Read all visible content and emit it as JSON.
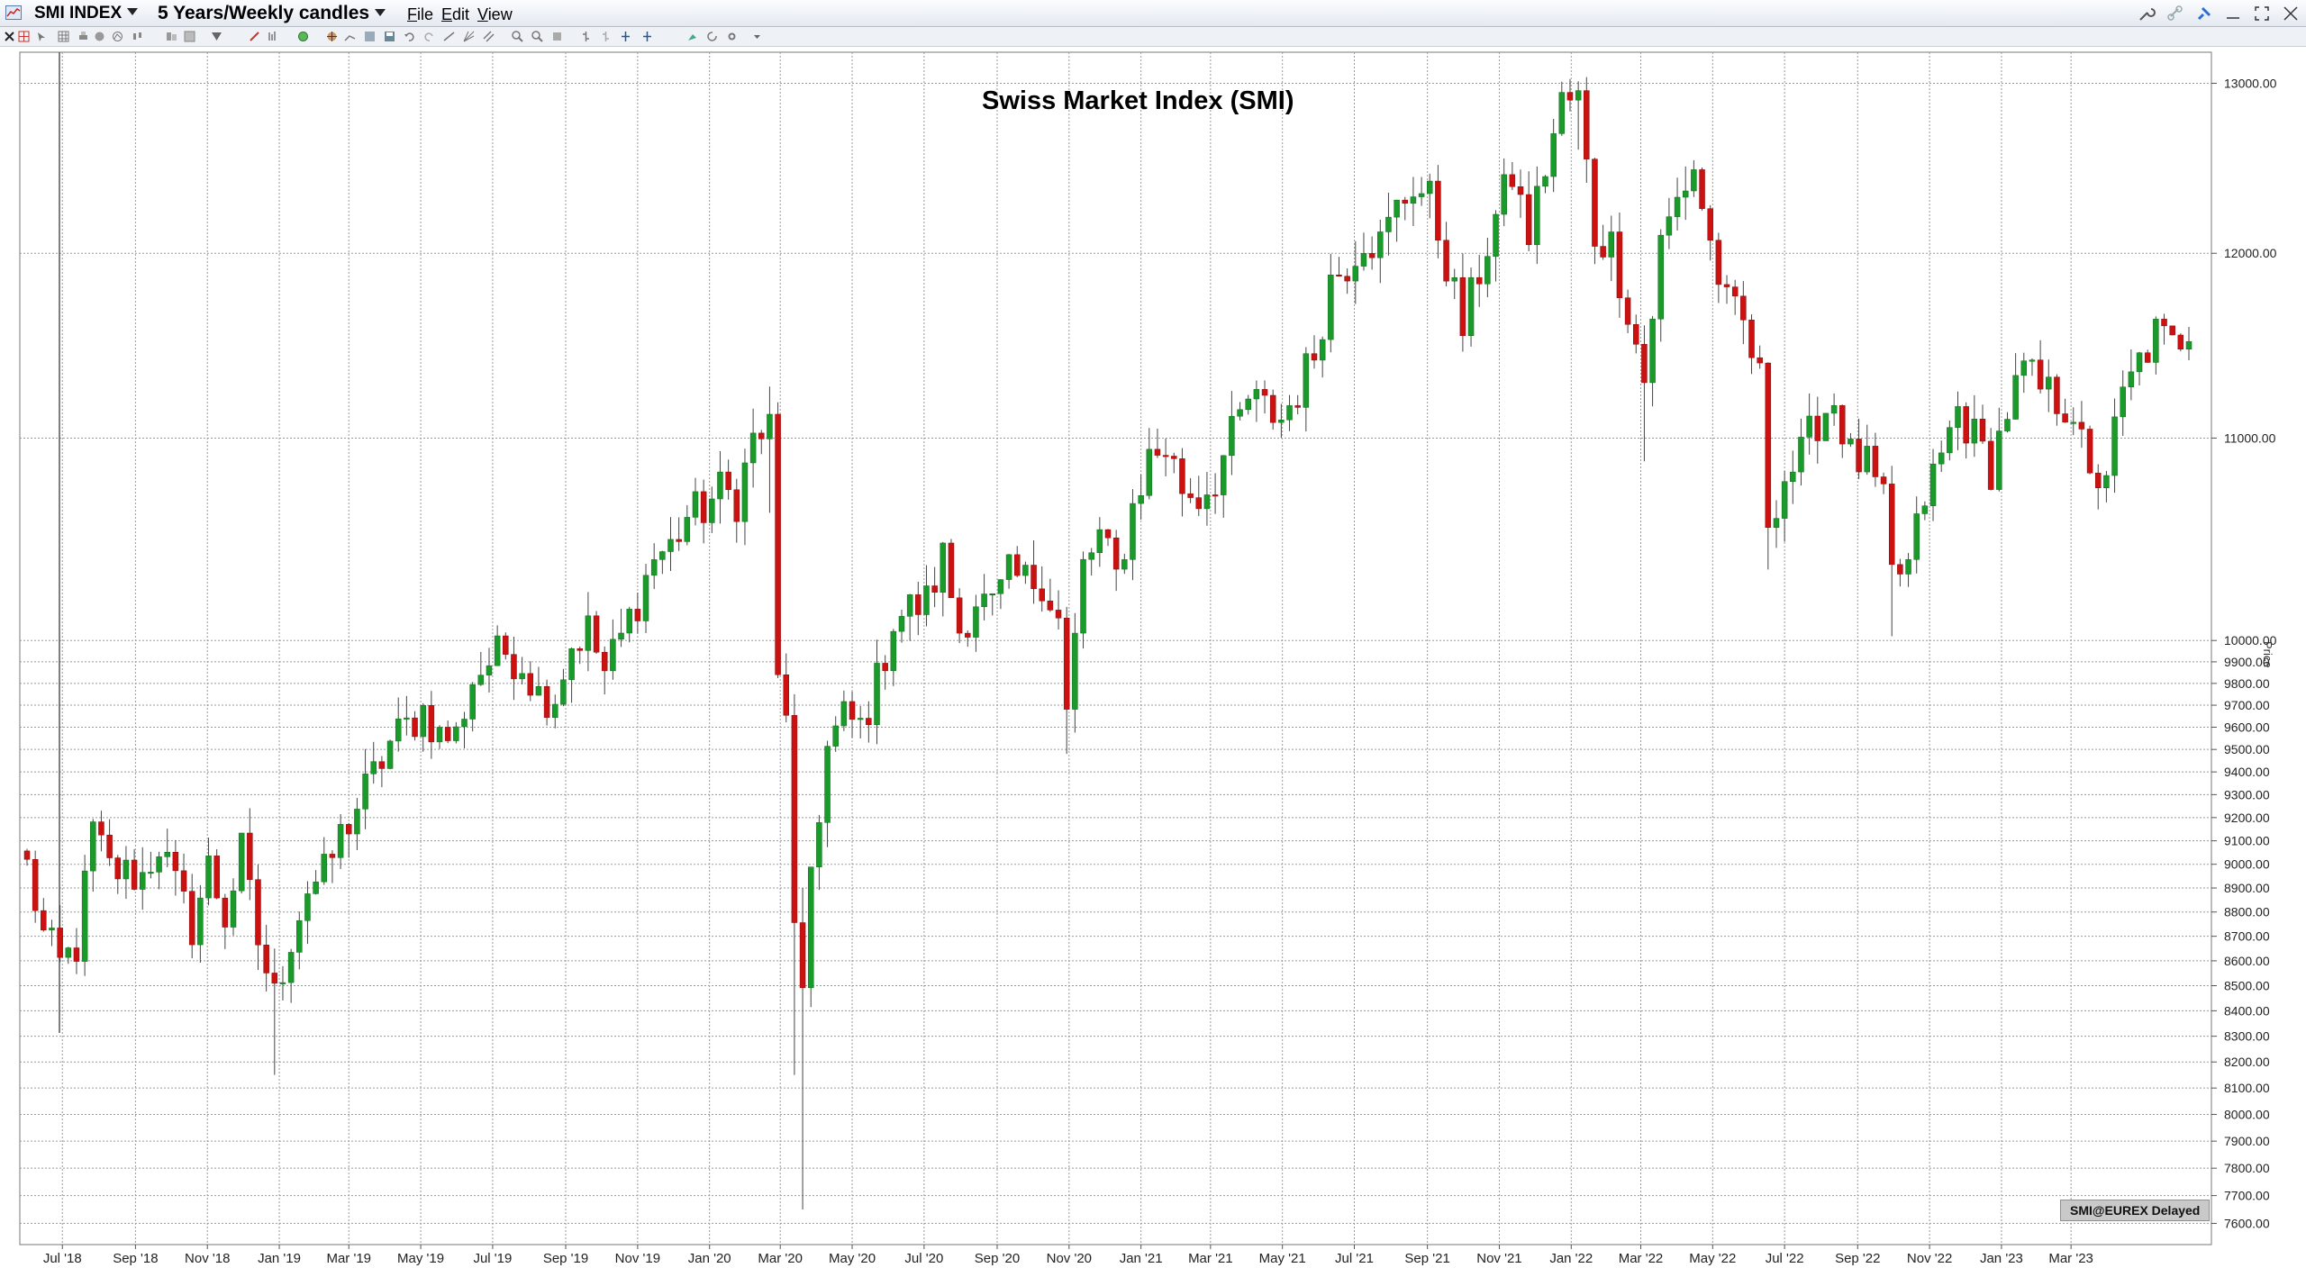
{
  "window": {
    "symbol": "SMI INDEX",
    "period": "5 Years/Weekly candles",
    "menu": [
      {
        "label": "File",
        "accel": "F",
        "rest": "ile"
      },
      {
        "label": "Edit",
        "accel": "E",
        "rest": "dit"
      },
      {
        "label": "View",
        "accel": "V",
        "rest": "iew"
      }
    ]
  },
  "source_badge": "SMI@EUREX Delayed",
  "colors": {
    "up": "#1a9a2a",
    "down": "#cc1111",
    "wick": "#444444",
    "grid": "#9a9a9a"
  },
  "chart_data": {
    "type": "candlestick",
    "title": "Swiss Market Index (SMI)",
    "ylabel": "Price",
    "y_scale": "log",
    "ylim": [
      7550,
      13080
    ],
    "xlim": [
      "2018-06-01",
      "2023-06-09"
    ],
    "grid": true,
    "y_ticks": [
      7600,
      7700,
      7800,
      7900,
      8000,
      8100,
      8200,
      8300,
      8400,
      8500,
      8600,
      8700,
      8800,
      8900,
      9000,
      9100,
      9200,
      9300,
      9400,
      9500,
      9600,
      9700,
      9800,
      9900,
      10000,
      11000,
      12000,
      13000
    ],
    "y_tick_labels": [
      "7600.00",
      "7700.00",
      "7800.00",
      "7900.00",
      "8000.00",
      "8100.00",
      "8200.00",
      "8300.00",
      "8400.00",
      "8500.00",
      "8600.00",
      "8700.00",
      "8800.00",
      "8900.00",
      "9000.00",
      "9100.00",
      "9200.00",
      "9300.00",
      "9400.00",
      "9500.00",
      "9600.00",
      "9700.00",
      "9800.00",
      "9900.00",
      "10000.00",
      "11000.00",
      "12000.00",
      "13000.00"
    ],
    "x_ticks": [
      {
        "date": "2018-07-01",
        "label": "Jul '18"
      },
      {
        "date": "2018-09-01",
        "label": "Sep '18"
      },
      {
        "date": "2018-11-01",
        "label": "Nov '18"
      },
      {
        "date": "2019-01-01",
        "label": "Jan '19"
      },
      {
        "date": "2019-03-01",
        "label": "Mar '19"
      },
      {
        "date": "2019-05-01",
        "label": "May '19"
      },
      {
        "date": "2019-07-01",
        "label": "Jul '19"
      },
      {
        "date": "2019-09-01",
        "label": "Sep '19"
      },
      {
        "date": "2019-11-01",
        "label": "Nov '19"
      },
      {
        "date": "2020-01-01",
        "label": "Jan '20"
      },
      {
        "date": "2020-03-01",
        "label": "Mar '20"
      },
      {
        "date": "2020-05-01",
        "label": "May '20"
      },
      {
        "date": "2020-07-01",
        "label": "Jul '20"
      },
      {
        "date": "2020-09-01",
        "label": "Sep '20"
      },
      {
        "date": "2020-11-01",
        "label": "Nov '20"
      },
      {
        "date": "2021-01-01",
        "label": "Jan '21"
      },
      {
        "date": "2021-03-01",
        "label": "Mar '21"
      },
      {
        "date": "2021-05-01",
        "label": "May '21"
      },
      {
        "date": "2021-07-01",
        "label": "Jul '21"
      },
      {
        "date": "2021-09-01",
        "label": "Sep '21"
      },
      {
        "date": "2021-11-01",
        "label": "Nov '21"
      },
      {
        "date": "2022-01-01",
        "label": "Jan '22"
      },
      {
        "date": "2022-03-01",
        "label": "Mar '22"
      },
      {
        "date": "2022-05-01",
        "label": "May '22"
      },
      {
        "date": "2022-07-01",
        "label": "Jul '22"
      },
      {
        "date": "2022-09-01",
        "label": "Sep '22"
      },
      {
        "date": "2022-11-01",
        "label": "Nov '22"
      },
      {
        "date": "2023-01-01",
        "label": "Jan '23"
      },
      {
        "date": "2023-03-01",
        "label": "Mar '23"
      }
    ],
    "candle_anchors": [
      [
        "2018-06-01",
        8990
      ],
      [
        "2018-06-15",
        8700
      ],
      [
        "2018-06-29",
        8580
      ],
      [
        "2018-07-13",
        8660
      ],
      [
        "2018-07-27",
        9140
      ],
      [
        "2018-08-10",
        8980
      ],
      [
        "2018-08-24",
        8960
      ],
      [
        "2018-09-07",
        8950
      ],
      [
        "2018-09-21",
        9090
      ],
      [
        "2018-10-05",
        8900
      ],
      [
        "2018-10-19",
        8740
      ],
      [
        "2018-11-02",
        8990
      ],
      [
        "2018-11-16",
        8780
      ],
      [
        "2018-11-30",
        9050
      ],
      [
        "2018-12-14",
        8680
      ],
      [
        "2018-12-28",
        8450
      ],
      [
        "2019-01-11",
        8700
      ],
      [
        "2019-01-25",
        8900
      ],
      [
        "2019-02-08",
        8950
      ],
      [
        "2019-02-22",
        9120
      ],
      [
        "2019-03-08",
        9250
      ],
      [
        "2019-03-22",
        9380
      ],
      [
        "2019-04-05",
        9530
      ],
      [
        "2019-04-19",
        9600
      ],
      [
        "2019-05-03",
        9680
      ],
      [
        "2019-05-17",
        9560
      ],
      [
        "2019-05-31",
        9560
      ],
      [
        "2019-06-14",
        9820
      ],
      [
        "2019-06-28",
        9900
      ],
      [
        "2019-07-12",
        9950
      ],
      [
        "2019-07-26",
        9900
      ],
      [
        "2019-08-09",
        9750
      ],
      [
        "2019-08-23",
        9750
      ],
      [
        "2019-09-06",
        9980
      ],
      [
        "2019-09-20",
        10050
      ],
      [
        "2019-10-04",
        9850
      ],
      [
        "2019-10-18",
        10010
      ],
      [
        "2019-11-01",
        10200
      ],
      [
        "2019-11-15",
        10400
      ],
      [
        "2019-11-29",
        10450
      ],
      [
        "2019-12-13",
        10600
      ],
      [
        "2019-12-27",
        10640
      ],
      [
        "2020-01-10",
        10730
      ],
      [
        "2020-01-24",
        10690
      ],
      [
        "2020-02-07",
        10990
      ],
      [
        "2020-02-21",
        11050
      ],
      [
        "2020-02-28",
        9800
      ],
      [
        "2020-03-06",
        9700
      ],
      [
        "2020-03-13",
        8700
      ],
      [
        "2020-03-20",
        8400
      ],
      [
        "2020-03-27",
        8990
      ],
      [
        "2020-04-10",
        9500
      ],
      [
        "2020-04-24",
        9640
      ],
      [
        "2020-05-08",
        9600
      ],
      [
        "2020-05-22",
        9800
      ],
      [
        "2020-06-05",
        10100
      ],
      [
        "2020-06-19",
        10150
      ],
      [
        "2020-07-03",
        10180
      ],
      [
        "2020-07-17",
        10400
      ],
      [
        "2020-07-31",
        10050
      ],
      [
        "2020-08-14",
        10200
      ],
      [
        "2020-08-28",
        10150
      ],
      [
        "2020-09-11",
        10300
      ],
      [
        "2020-09-25",
        10280
      ],
      [
        "2020-10-09",
        10300
      ],
      [
        "2020-10-23",
        10100
      ],
      [
        "2020-10-30",
        9650
      ],
      [
        "2020-11-13",
        10350
      ],
      [
        "2020-11-27",
        10500
      ],
      [
        "2020-12-11",
        10300
      ],
      [
        "2020-12-25",
        10650
      ],
      [
        "2021-01-08",
        10900
      ],
      [
        "2021-01-22",
        10950
      ],
      [
        "2021-02-05",
        10750
      ],
      [
        "2021-02-19",
        10700
      ],
      [
        "2021-03-05",
        10800
      ],
      [
        "2021-03-19",
        11000
      ],
      [
        "2021-04-02",
        11200
      ],
      [
        "2021-04-16",
        11150
      ],
      [
        "2021-04-30",
        11100
      ],
      [
        "2021-05-14",
        11250
      ],
      [
        "2021-05-28",
        11450
      ],
      [
        "2021-06-11",
        11850
      ],
      [
        "2021-06-25",
        11950
      ],
      [
        "2021-07-09",
        12100
      ],
      [
        "2021-07-23",
        12050
      ],
      [
        "2021-08-06",
        12250
      ],
      [
        "2021-08-20",
        12400
      ],
      [
        "2021-09-03",
        12300
      ],
      [
        "2021-09-17",
        11950
      ],
      [
        "2021-10-01",
        11580
      ],
      [
        "2021-10-15",
        11900
      ],
      [
        "2021-10-29",
        12200
      ],
      [
        "2021-11-12",
        12450
      ],
      [
        "2021-11-26",
        12100
      ],
      [
        "2021-12-10",
        12500
      ],
      [
        "2021-12-24",
        12880
      ],
      [
        "2022-01-07",
        12900
      ],
      [
        "2022-01-21",
        12100
      ],
      [
        "2022-02-04",
        12050
      ],
      [
        "2022-02-18",
        11700
      ],
      [
        "2022-03-04",
        11300
      ],
      [
        "2022-03-18",
        12050
      ],
      [
        "2022-04-01",
        12300
      ],
      [
        "2022-04-15",
        12500
      ],
      [
        "2022-04-29",
        12050
      ],
      [
        "2022-05-13",
        11700
      ],
      [
        "2022-05-27",
        11600
      ],
      [
        "2022-06-10",
        11300
      ],
      [
        "2022-06-17",
        10600
      ],
      [
        "2022-07-01",
        10800
      ],
      [
        "2022-07-15",
        10900
      ],
      [
        "2022-07-29",
        11100
      ],
      [
        "2022-08-12",
        11200
      ],
      [
        "2022-08-26",
        10900
      ],
      [
        "2022-09-09",
        10850
      ],
      [
        "2022-09-23",
        10650
      ],
      [
        "2022-09-30",
        10300
      ],
      [
        "2022-10-14",
        10350
      ],
      [
        "2022-10-28",
        10700
      ],
      [
        "2022-11-11",
        10900
      ],
      [
        "2022-11-25",
        11150
      ],
      [
        "2022-12-09",
        11000
      ],
      [
        "2022-12-23",
        10850
      ],
      [
        "2023-01-06",
        11150
      ],
      [
        "2023-01-20",
        11350
      ],
      [
        "2023-02-03",
        11250
      ],
      [
        "2023-02-17",
        11200
      ],
      [
        "2023-03-03",
        11150
      ],
      [
        "2023-03-17",
        10750
      ],
      [
        "2023-03-31",
        10850
      ],
      [
        "2023-04-14",
        11200
      ],
      [
        "2023-04-28",
        11400
      ],
      [
        "2023-05-12",
        11550
      ],
      [
        "2023-05-26",
        11480
      ],
      [
        "2023-06-09",
        11600
      ]
    ],
    "extremes": [
      {
        "date": "2020-03-20",
        "low": 7650,
        "high": 8900
      },
      {
        "date": "2020-03-13",
        "low": 8150,
        "high": 9750
      },
      {
        "date": "2018-12-28",
        "low": 8150,
        "high": 8650
      },
      {
        "date": "2020-02-21",
        "low": 10620,
        "high": 11270
      },
      {
        "date": "2022-01-07",
        "low": 12600,
        "high": 13000
      },
      {
        "date": "2022-03-04",
        "low": 10880,
        "high": 11600
      },
      {
        "date": "2022-06-17",
        "low": 10340,
        "high": 10900
      },
      {
        "date": "2022-09-30",
        "low": 10020,
        "high": 10500
      },
      {
        "date": "2020-10-30",
        "low": 9480,
        "high": 10000
      }
    ]
  }
}
